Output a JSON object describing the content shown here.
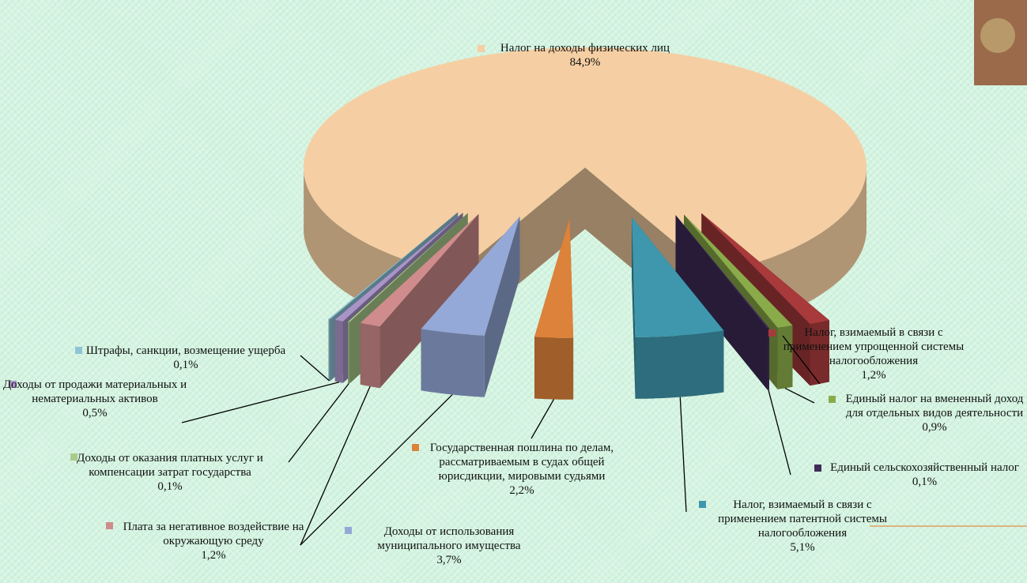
{
  "chart_data": {
    "type": "pie",
    "categories": [
      "Налог на доходы физических лиц",
      "Налог, взимаемый в связи с применением упрощенной системы налогообложения",
      "Единый налог на вмененный доход для отдельных видов деятельности",
      "Единый сельскохозяйственный налог",
      "Налог, взимаемый в связи с применением патентной системы налогообложения",
      "Государственная пошлина по делам, рассматриваемым в судах общей юрисдикции, мировыми судьями",
      "Доходы от использования муниципального имущества",
      "Плата за негативное воздействие на окружающую среду",
      "Доходы от оказания платных услуг и компенсации затрат государства",
      "Доходы от продажи материальных и нематериальных активов",
      "Штрафы, санкции, возмещение ущерба"
    ],
    "values": [
      84.9,
      1.2,
      0.9,
      0.1,
      5.1,
      2.2,
      3.7,
      1.2,
      0.1,
      0.5,
      0.1
    ],
    "value_labels": [
      "84,9%",
      "1,2%",
      "0,9%",
      "0,1%",
      "5,1%",
      "2,2%",
      "3,7%",
      "1,2%",
      "0,1%",
      "0,5%",
      "0,1%"
    ],
    "colors": [
      "#f5cfa3",
      "#a83a3c",
      "#8aab4a",
      "#3f2c5a",
      "#3e97ad",
      "#dd823a",
      "#95a9d8",
      "#d08c8c",
      "#aacb8c",
      "#a994c8",
      "#8fc4d8"
    ]
  }
}
